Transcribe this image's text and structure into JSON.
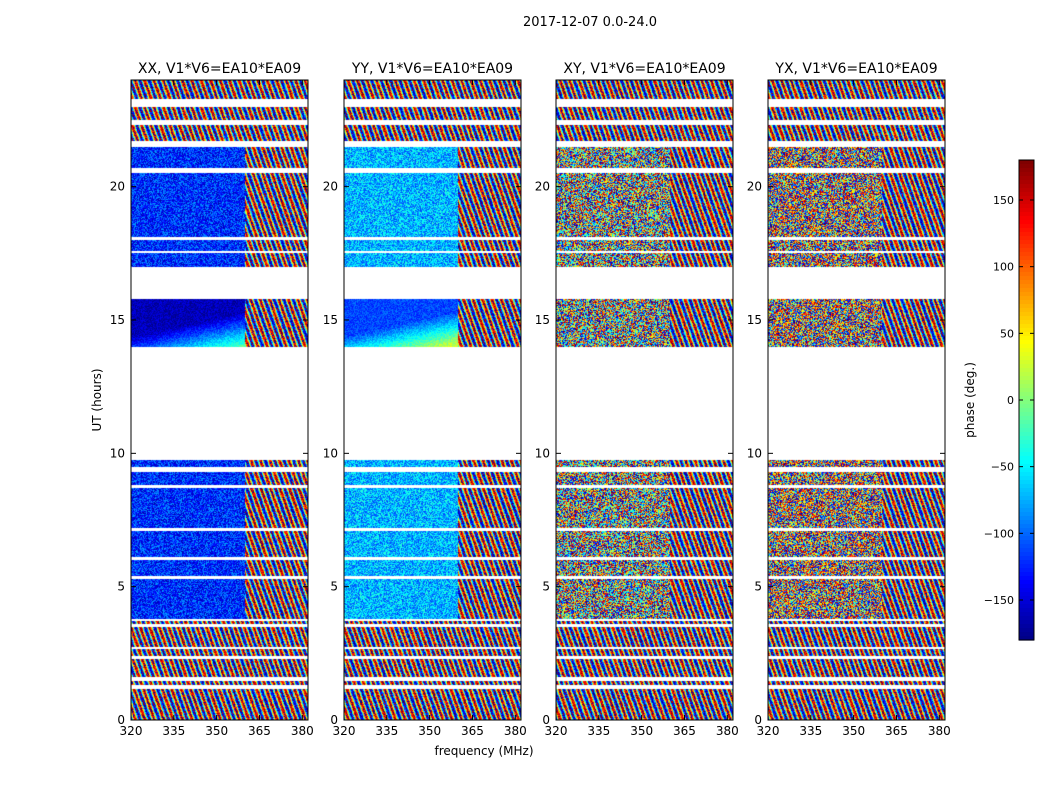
{
  "figure_title": "2017-12-07 0.0-24.0",
  "chart_data": {
    "type": "heatmap",
    "title": "2017-12-07 0.0-24.0",
    "xlabel": "frequency (MHz)",
    "ylabel": "UT (hours)",
    "xlim": [
      320,
      382
    ],
    "ylim": [
      0,
      24
    ],
    "x_ticks": [
      320,
      335,
      350,
      365,
      380
    ],
    "y_ticks": [
      0,
      5,
      10,
      15,
      20
    ],
    "panels": [
      {
        "title": "XX, V1*V6=EA10*EA09",
        "base_phase": -120,
        "noise": 0.25
      },
      {
        "title": "YY, V1*V6=EA10*EA09",
        "base_phase": -70,
        "noise": 0.25
      },
      {
        "title": "XY, V1*V6=EA10*EA09",
        "base_phase": 0,
        "noise": 1.0
      },
      {
        "title": "YX, V1*V6=EA10*EA09",
        "base_phase": 150,
        "noise": 0.9
      }
    ],
    "data_intervals_ut_hours": [
      [
        0.0,
        1.15
      ],
      [
        1.3,
        1.45
      ],
      [
        1.6,
        2.3
      ],
      [
        2.4,
        2.65
      ],
      [
        2.75,
        3.5
      ],
      [
        3.6,
        3.7
      ],
      [
        3.8,
        5.3
      ],
      [
        5.4,
        6.0
      ],
      [
        6.1,
        7.1
      ],
      [
        7.2,
        8.7
      ],
      [
        8.8,
        9.3
      ],
      [
        9.5,
        9.75
      ],
      [
        14.0,
        15.8
      ],
      [
        17.0,
        17.5
      ],
      [
        17.6,
        18.0
      ],
      [
        18.1,
        20.5
      ],
      [
        20.7,
        21.5
      ],
      [
        21.7,
        22.3
      ],
      [
        22.5,
        23.0
      ],
      [
        23.3,
        24.0
      ]
    ],
    "colorbar": {
      "label": "phase (deg.)",
      "colormap": "jet",
      "range": [
        -180,
        180
      ],
      "ticks": [
        150,
        100,
        50,
        0,
        -50,
        -100,
        -150
      ],
      "tick_labels": [
        "150",
        "100",
        "50",
        "0",
        "−50",
        "−100",
        "−150"
      ]
    }
  }
}
